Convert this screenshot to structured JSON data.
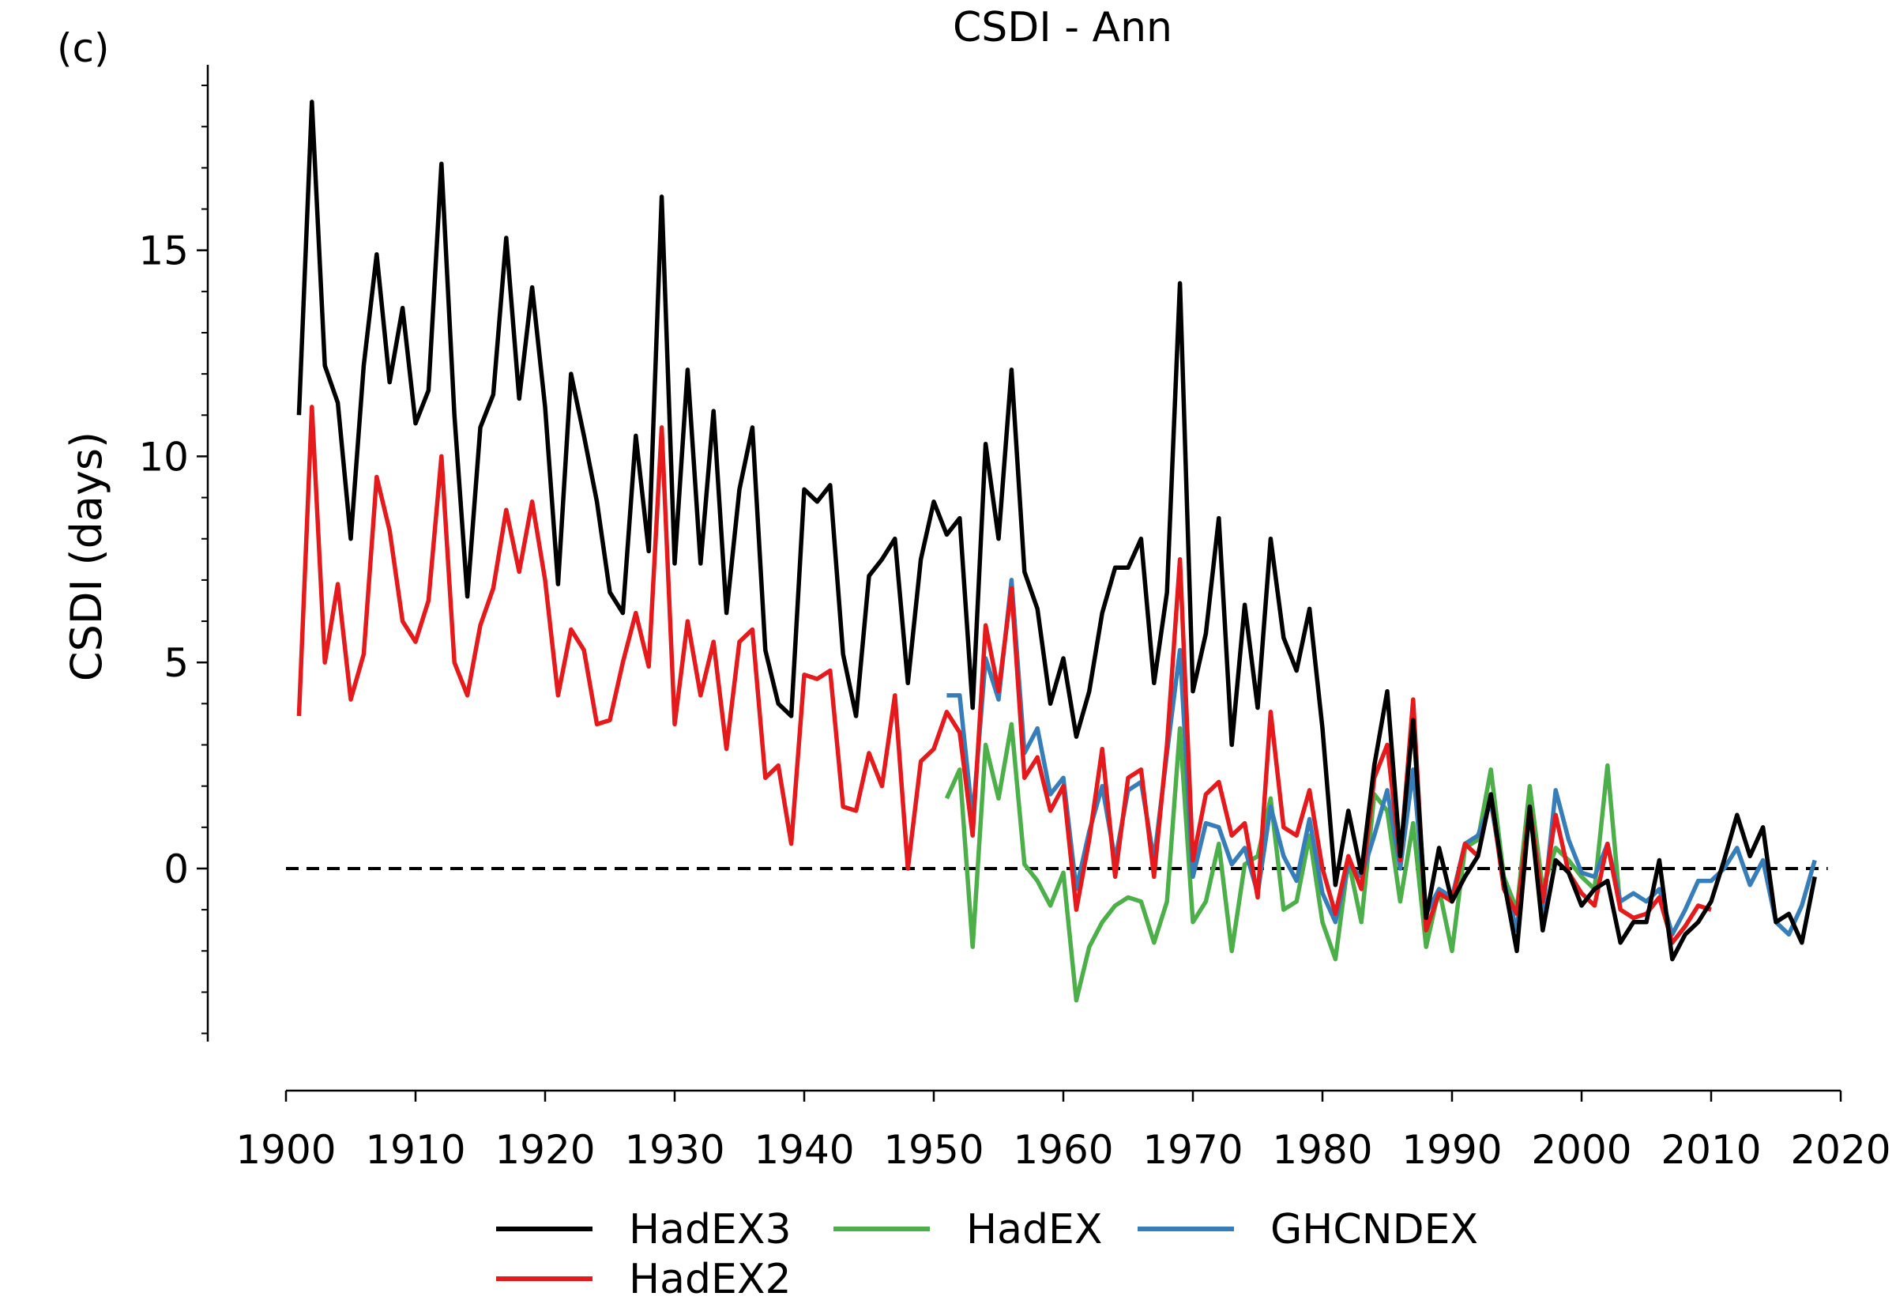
{
  "panel_label": "(c)",
  "chart_data": {
    "type": "line",
    "title": "CSDI - Ann",
    "xlabel": "",
    "ylabel": "CSDI (days)",
    "xlim": [
      1900,
      2020
    ],
    "ylim": [
      -4.2,
      19.5
    ],
    "xticks": [
      1900,
      1910,
      1920,
      1930,
      1940,
      1950,
      1960,
      1970,
      1980,
      1990,
      2000,
      2010,
      2020
    ],
    "yticks": [
      0,
      5,
      10,
      15
    ],
    "reference_line": {
      "y": 0,
      "style": "dashed",
      "color": "#000000"
    },
    "grid": false,
    "legend_position": "bottom",
    "series": [
      {
        "name": "HadEX3",
        "color": "#000000",
        "x": [
          1901,
          1902,
          1903,
          1904,
          1905,
          1906,
          1907,
          1908,
          1909,
          1910,
          1911,
          1912,
          1913,
          1914,
          1915,
          1916,
          1917,
          1918,
          1919,
          1920,
          1921,
          1922,
          1923,
          1924,
          1925,
          1926,
          1927,
          1928,
          1929,
          1930,
          1931,
          1932,
          1933,
          1934,
          1935,
          1936,
          1937,
          1938,
          1939,
          1940,
          1941,
          1942,
          1943,
          1944,
          1945,
          1946,
          1947,
          1948,
          1949,
          1950,
          1951,
          1952,
          1953,
          1954,
          1955,
          1956,
          1957,
          1958,
          1959,
          1960,
          1961,
          1962,
          1963,
          1964,
          1965,
          1966,
          1967,
          1968,
          1969,
          1970,
          1971,
          1972,
          1973,
          1974,
          1975,
          1976,
          1977,
          1978,
          1979,
          1980,
          1981,
          1982,
          1983,
          1984,
          1985,
          1986,
          1987,
          1988,
          1989,
          1990,
          1991,
          1992,
          1993,
          1994,
          1995,
          1996,
          1997,
          1998,
          1999,
          2000,
          2001,
          2002,
          2003,
          2004,
          2005,
          2006,
          2007,
          2008,
          2009,
          2010,
          2011,
          2012,
          2013,
          2014,
          2015,
          2016,
          2017,
          2018
        ],
        "y": [
          11.0,
          18.6,
          12.2,
          11.3,
          8.0,
          12.2,
          14.9,
          11.8,
          13.6,
          10.8,
          11.6,
          17.1,
          11.0,
          6.6,
          10.7,
          11.5,
          15.3,
          11.4,
          14.1,
          11.2,
          6.9,
          12.0,
          10.5,
          8.9,
          6.7,
          6.2,
          10.5,
          7.7,
          16.3,
          7.4,
          12.1,
          7.4,
          11.1,
          6.2,
          9.2,
          10.7,
          5.3,
          4.0,
          3.7,
          9.2,
          8.9,
          9.3,
          5.2,
          3.7,
          7.1,
          7.5,
          8.0,
          4.5,
          7.5,
          8.9,
          8.1,
          8.5,
          3.9,
          10.3,
          8.0,
          12.1,
          7.2,
          6.3,
          4.0,
          5.1,
          3.2,
          4.3,
          6.2,
          7.3,
          7.3,
          8.0,
          4.5,
          6.7,
          14.2,
          4.3,
          5.7,
          8.5,
          3.0,
          6.4,
          3.9,
          8.0,
          5.6,
          4.8,
          6.3,
          3.4,
          -0.4,
          1.4,
          -0.1,
          2.5,
          4.3,
          0.3,
          3.6,
          -1.2,
          0.5,
          -0.8,
          -0.2,
          0.3,
          1.8,
          -0.3,
          -2.0,
          1.5,
          -1.5,
          0.2,
          -0.1,
          -0.9,
          -0.5,
          -0.3,
          -1.8,
          -1.3,
          -1.3,
          0.2,
          -2.2,
          -1.6,
          -1.3,
          -0.8,
          0.2,
          1.3,
          0.3,
          1.0,
          -1.3,
          -1.1,
          -1.8,
          -0.2
        ]
      },
      {
        "name": "HadEX2",
        "color": "#e41a1c",
        "x": [
          1901,
          1902,
          1903,
          1904,
          1905,
          1906,
          1907,
          1908,
          1909,
          1910,
          1911,
          1912,
          1913,
          1914,
          1915,
          1916,
          1917,
          1918,
          1919,
          1920,
          1921,
          1922,
          1923,
          1924,
          1925,
          1926,
          1927,
          1928,
          1929,
          1930,
          1931,
          1932,
          1933,
          1934,
          1935,
          1936,
          1937,
          1938,
          1939,
          1940,
          1941,
          1942,
          1943,
          1944,
          1945,
          1946,
          1947,
          1948,
          1949,
          1950,
          1951,
          1952,
          1953,
          1954,
          1955,
          1956,
          1957,
          1958,
          1959,
          1960,
          1961,
          1962,
          1963,
          1964,
          1965,
          1966,
          1967,
          1968,
          1969,
          1970,
          1971,
          1972,
          1973,
          1974,
          1975,
          1976,
          1977,
          1978,
          1979,
          1980,
          1981,
          1982,
          1983,
          1984,
          1985,
          1986,
          1987,
          1988,
          1989,
          1990,
          1991,
          1992,
          1993,
          1994,
          1995,
          1996,
          1997,
          1998,
          1999,
          2000,
          2001,
          2002,
          2003,
          2004,
          2005,
          2006,
          2007,
          2008,
          2009,
          2010
        ],
        "y": [
          3.7,
          11.2,
          5.0,
          6.9,
          4.1,
          5.2,
          9.5,
          8.2,
          6.0,
          5.5,
          6.5,
          10.0,
          5.0,
          4.2,
          5.9,
          6.8,
          8.7,
          7.2,
          8.9,
          7.0,
          4.2,
          5.8,
          5.3,
          3.5,
          3.6,
          5.0,
          6.2,
          4.9,
          10.7,
          3.5,
          6.0,
          4.2,
          5.5,
          2.9,
          5.5,
          5.8,
          2.2,
          2.5,
          0.6,
          4.7,
          4.6,
          4.8,
          1.5,
          1.4,
          2.8,
          2.0,
          4.2,
          0.0,
          2.6,
          2.9,
          3.8,
          3.3,
          0.8,
          5.9,
          4.3,
          6.8,
          2.2,
          2.7,
          1.4,
          2.0,
          -1.0,
          0.7,
          2.9,
          -0.2,
          2.2,
          2.4,
          -0.2,
          3.0,
          7.5,
          0.2,
          1.8,
          2.1,
          0.8,
          1.1,
          -0.7,
          3.8,
          1.0,
          0.8,
          1.9,
          0.0,
          -1.1,
          0.3,
          -0.5,
          2.2,
          3.0,
          0.2,
          4.1,
          -1.5,
          -0.6,
          -0.8,
          0.6,
          0.3,
          1.8,
          -0.5,
          -1.1,
          1.5,
          -0.8,
          1.3,
          -0.1,
          -0.6,
          -0.9,
          0.6,
          -1.0,
          -1.2,
          -1.1,
          -0.7,
          -1.8,
          -1.4,
          -0.9,
          -1.0
        ]
      },
      {
        "name": "HadEX",
        "color": "#4daf4a",
        "x": [
          1951,
          1952,
          1953,
          1954,
          1955,
          1956,
          1957,
          1958,
          1959,
          1960,
          1961,
          1962,
          1963,
          1964,
          1965,
          1966,
          1967,
          1968,
          1969,
          1970,
          1971,
          1972,
          1973,
          1974,
          1975,
          1976,
          1977,
          1978,
          1979,
          1980,
          1981,
          1982,
          1983,
          1984,
          1985,
          1986,
          1987,
          1988,
          1989,
          1990,
          1991,
          1992,
          1993,
          1994,
          1995,
          1996,
          1997,
          1998,
          1999,
          2000,
          2001,
          2002,
          2003
        ],
        "y": [
          1.7,
          2.4,
          -1.9,
          3.0,
          1.7,
          3.5,
          0.1,
          -0.3,
          -0.9,
          -0.1,
          -3.2,
          -1.9,
          -1.3,
          -0.9,
          -0.7,
          -0.8,
          -1.8,
          -0.8,
          3.4,
          -1.3,
          -0.8,
          0.6,
          -2.0,
          0.1,
          0.3,
          1.7,
          -1.0,
          -0.8,
          0.8,
          -1.3,
          -2.2,
          0.2,
          -1.3,
          1.8,
          1.4,
          -0.8,
          1.1,
          -1.9,
          -0.5,
          -2.0,
          0.5,
          0.7,
          2.4,
          -0.2,
          -1.0,
          2.0,
          -0.5,
          0.5,
          0.2,
          -0.2,
          -0.5,
          2.5,
          -1.0
        ]
      },
      {
        "name": "GHCNDEX",
        "color": "#377eb8",
        "x": [
          1951,
          1952,
          1953,
          1954,
          1955,
          1956,
          1957,
          1958,
          1959,
          1960,
          1961,
          1962,
          1963,
          1964,
          1965,
          1966,
          1967,
          1968,
          1969,
          1970,
          1971,
          1972,
          1973,
          1974,
          1975,
          1976,
          1977,
          1978,
          1979,
          1980,
          1981,
          1982,
          1983,
          1984,
          1985,
          1986,
          1987,
          1988,
          1989,
          1990,
          1991,
          1992,
          1993,
          1994,
          1995,
          1996,
          1997,
          1998,
          1999,
          2000,
          2001,
          2002,
          2003,
          2004,
          2005,
          2006,
          2007,
          2008,
          2009,
          2010,
          2011,
          2012,
          2013,
          2014,
          2015,
          2016,
          2017,
          2018
        ],
        "y": [
          4.2,
          4.2,
          1.2,
          5.1,
          4.1,
          7.0,
          2.8,
          3.4,
          1.8,
          2.2,
          -0.5,
          0.9,
          2.0,
          0.2,
          1.9,
          2.1,
          0.2,
          2.8,
          5.3,
          -0.2,
          1.1,
          1.0,
          0.1,
          0.5,
          -0.6,
          1.5,
          0.3,
          -0.3,
          1.2,
          -0.6,
          -1.3,
          0.1,
          -0.2,
          0.8,
          1.9,
          0.0,
          2.4,
          -1.1,
          -0.5,
          -0.7,
          0.6,
          0.8,
          1.6,
          -0.3,
          -1.5,
          1.4,
          -1.1,
          1.9,
          0.7,
          -0.1,
          -0.2,
          0.6,
          -0.8,
          -0.6,
          -0.8,
          -0.5,
          -1.6,
          -1.0,
          -0.3,
          -0.3,
          0.0,
          0.5,
          -0.4,
          0.2,
          -1.3,
          -1.6,
          -0.9,
          0.2
        ]
      }
    ]
  }
}
